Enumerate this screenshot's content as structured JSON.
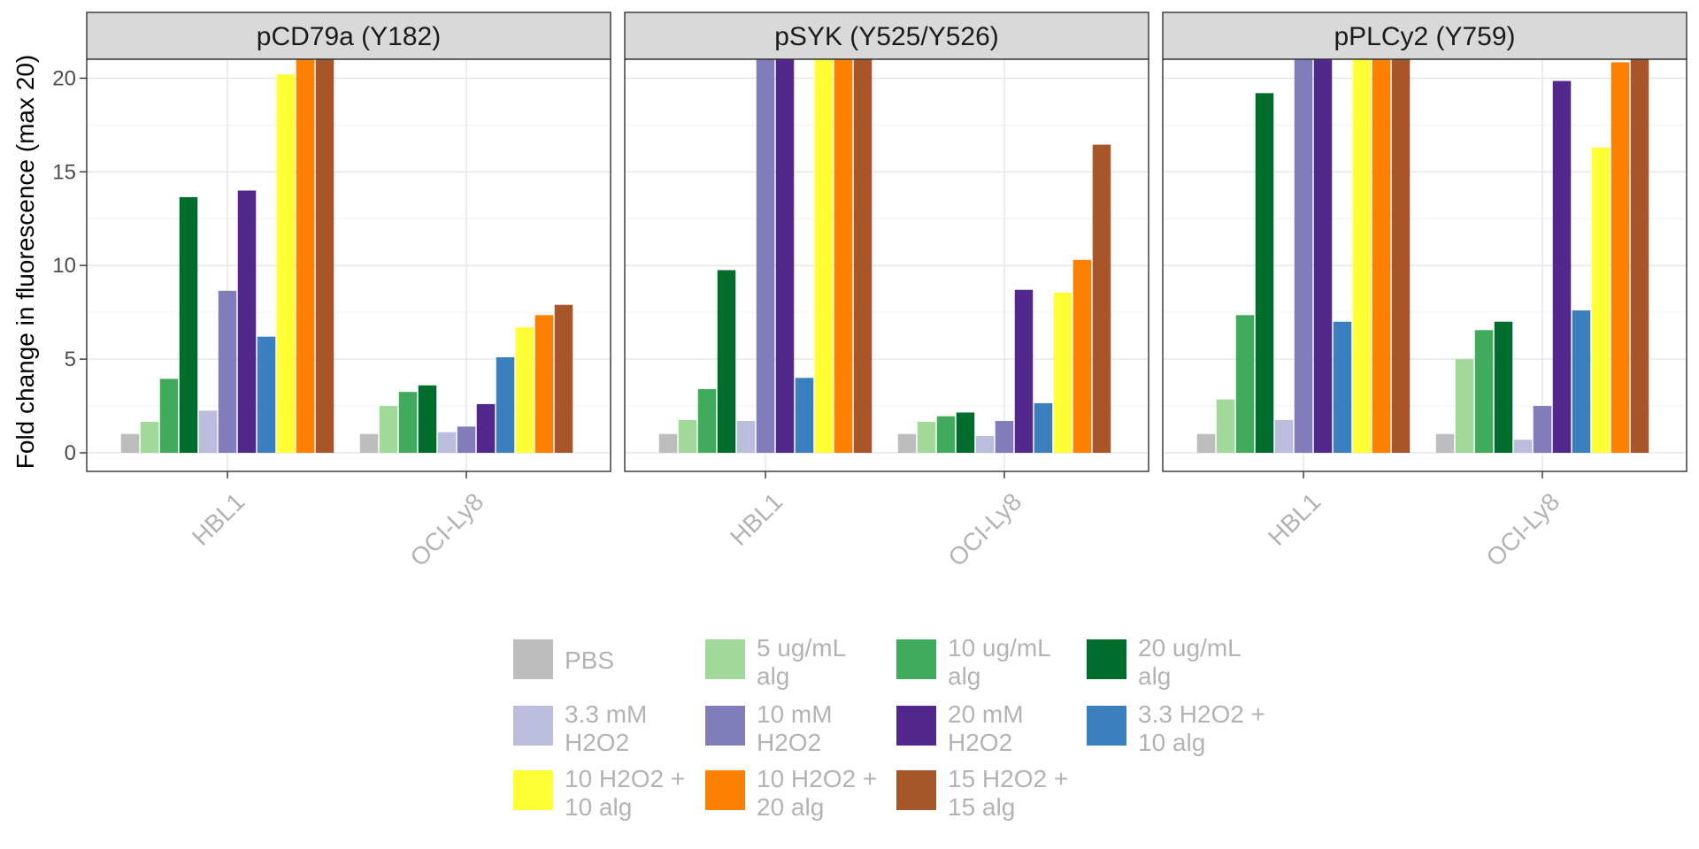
{
  "chart_data": {
    "type": "bar",
    "title": "",
    "ylabel": "Fold change in fluorescence (max 20)",
    "xlabel": "",
    "ylim": [
      -1,
      22.8
    ],
    "yticks": [
      0,
      5,
      10,
      15,
      20
    ],
    "value_cap": 21,
    "categories": [
      "HBL1",
      "OCI-Ly8"
    ],
    "legend_position": "bottom",
    "grid": true,
    "series": [
      {
        "name": "PBS",
        "color": "#BDBDBD"
      },
      {
        "name": "5 ug/mL alg",
        "color": "#A1D99B"
      },
      {
        "name": "10 ug/mL alg",
        "color": "#41AB5D"
      },
      {
        "name": "20 ug/mL alg",
        "color": "#006D2C"
      },
      {
        "name": "3.3 mM H2O2",
        "color": "#BCBDDC"
      },
      {
        "name": "10 mM H2O2",
        "color": "#807DBA"
      },
      {
        "name": "20 mM H2O2",
        "color": "#54278F"
      },
      {
        "name": "3.3 H2O2 + 10 alg",
        "color": "#3A7FBE"
      },
      {
        "name": "10 H2O2 + 10 alg",
        "color": "#FFFF33"
      },
      {
        "name": "10 H2O2 + 20 alg",
        "color": "#FF7F00"
      },
      {
        "name": "15 H2O2 + 15 alg",
        "color": "#A65628"
      }
    ],
    "panels": [
      {
        "title": "pCD79a (Y182)",
        "values": {
          "HBL1": [
            1.0,
            1.65,
            3.95,
            13.65,
            2.25,
            8.65,
            14.0,
            6.2,
            20.2,
            21,
            21
          ],
          "OCI-Ly8": [
            1.0,
            2.5,
            3.25,
            3.6,
            1.1,
            1.4,
            2.6,
            5.1,
            6.7,
            7.35,
            7.9
          ]
        }
      },
      {
        "title": "pSYK (Y525/Y526)",
        "values": {
          "HBL1": [
            1.0,
            1.75,
            3.4,
            9.75,
            1.7,
            21,
            21,
            4.0,
            21,
            21,
            21
          ],
          "OCI-Ly8": [
            1.0,
            1.65,
            1.95,
            2.15,
            0.9,
            1.7,
            8.7,
            2.65,
            8.55,
            10.3,
            16.45
          ]
        }
      },
      {
        "title": "pPLCy2 (Y759)",
        "values": {
          "HBL1": [
            1.0,
            2.85,
            7.35,
            19.2,
            1.75,
            21,
            21,
            7.0,
            21,
            21,
            21
          ],
          "OCI-Ly8": [
            1.0,
            5.0,
            6.55,
            7.0,
            0.7,
            2.5,
            19.85,
            7.6,
            16.3,
            20.85,
            21
          ]
        }
      }
    ]
  }
}
